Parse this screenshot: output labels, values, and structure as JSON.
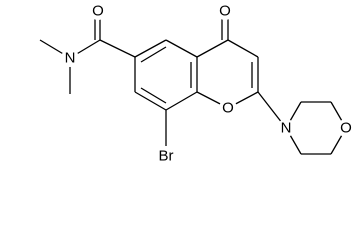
{
  "atoms": [
    {
      "label": "O"
    },
    {
      "label": "N"
    },
    {
      "label": "O"
    },
    {
      "label": "O"
    },
    {
      "label": "Br"
    },
    {
      "label": "N"
    },
    {
      "label": "O"
    }
  ]
}
